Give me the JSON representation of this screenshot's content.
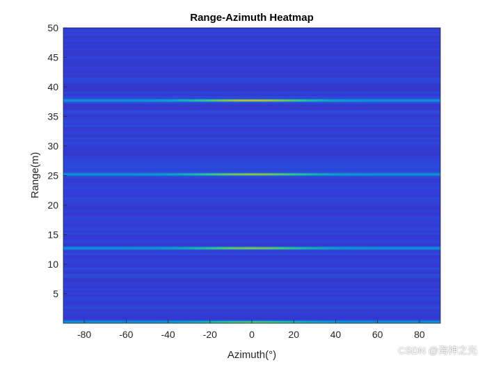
{
  "chart_data": {
    "type": "heatmap",
    "title": "Range-Azimuth Heatmap",
    "xlabel": "Azimuth(°)",
    "ylabel": "Range(m)",
    "xlim": [
      -90,
      90
    ],
    "ylim": [
      0,
      50
    ],
    "xticks": [
      -80,
      -60,
      -40,
      -20,
      0,
      20,
      40,
      60,
      80
    ],
    "yticks": [
      5,
      10,
      15,
      20,
      25,
      30,
      35,
      40,
      45,
      50
    ],
    "colormap": "parula",
    "background_level": 0.13,
    "targets": [
      {
        "range": 37.7,
        "azimuth": 0,
        "peak": 0.78
      },
      {
        "range": 25.2,
        "azimuth": 0,
        "peak": 0.72
      },
      {
        "range": 12.7,
        "azimuth": 0,
        "peak": 0.7
      },
      {
        "range": 0.2,
        "azimuth": 0,
        "peak": 0.6
      }
    ],
    "grid": false
  },
  "watermark": "CSDN @海神之光",
  "colors": {
    "axis": "#262626",
    "low": "#3a2ef0",
    "high": "#f8e63a"
  }
}
